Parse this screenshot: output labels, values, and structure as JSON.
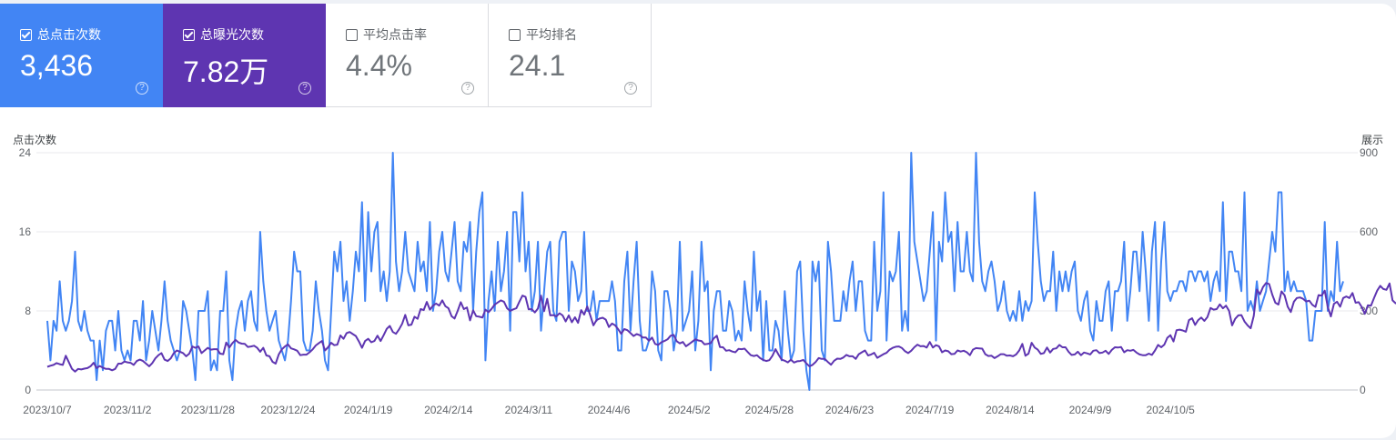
{
  "metrics": [
    {
      "label": "总点击次数",
      "value": "3,436",
      "checked": true
    },
    {
      "label": "总曝光次数",
      "value": "7.82万",
      "checked": true
    },
    {
      "label": "平均点击率",
      "value": "4.4%",
      "checked": false
    },
    {
      "label": "平均排名",
      "value": "24.1",
      "checked": false
    }
  ],
  "help_glyph": "?",
  "colors": {
    "clicks": "#4285f4",
    "impressions": "#5e35b1"
  },
  "chart_data": {
    "type": "line",
    "ylabel_left": "点击次数",
    "ylabel_right": "展示",
    "y_left_ticks": [
      "0",
      "8",
      "16",
      "24"
    ],
    "y_right_ticks": [
      "0",
      "300",
      "600",
      "900"
    ],
    "ylim_left": [
      0,
      24
    ],
    "ylim_right": [
      0,
      900
    ],
    "x_ticks": [
      "2023/10/7",
      "2023/11/2",
      "2023/11/28",
      "2023/12/24",
      "2024/1/19",
      "2024/2/14",
      "2024/3/11",
      "2024/4/6",
      "2024/5/2",
      "2024/5/28",
      "2024/6/23",
      "2024/7/19",
      "2024/8/14",
      "2024/9/9",
      "2024/10/5"
    ],
    "start_date": "2023/10/7",
    "series": [
      {
        "name": "总点击次数",
        "axis": "left",
        "values": [
          7,
          3,
          7,
          6,
          11,
          7,
          6,
          7,
          9,
          14,
          7,
          6,
          8,
          6,
          5,
          5,
          1,
          5,
          2,
          6,
          7,
          7,
          4,
          8,
          4,
          3,
          4,
          3,
          7,
          7,
          5,
          9,
          3,
          5,
          8,
          6,
          4,
          7,
          11,
          7,
          5,
          4,
          3,
          4,
          9,
          8,
          6,
          4,
          1,
          8,
          8,
          8,
          10,
          2,
          3,
          2,
          8,
          8,
          12,
          3,
          1,
          6,
          8,
          9,
          6,
          9,
          10,
          7,
          6,
          16,
          11,
          8,
          6,
          7,
          8,
          5,
          4,
          3,
          5,
          9,
          14,
          12,
          12,
          5,
          4,
          4,
          6,
          11,
          8,
          6,
          3,
          2,
          8,
          14,
          12,
          15,
          9,
          11,
          7,
          10,
          14,
          12,
          19,
          9,
          18,
          12,
          16,
          17,
          10,
          12,
          9,
          12,
          24,
          13,
          10,
          12,
          16,
          12,
          11,
          10,
          15,
          12,
          13,
          10,
          17,
          8,
          10,
          14,
          16,
          12,
          11,
          14,
          17,
          11,
          10,
          15,
          14,
          17,
          8,
          14,
          18,
          20,
          3,
          9,
          12,
          8,
          15,
          10,
          12,
          16,
          6,
          18,
          18,
          13,
          20,
          12,
          15,
          8,
          10,
          15,
          6,
          10,
          14,
          15,
          8,
          7,
          15,
          16,
          16,
          8,
          13,
          12,
          9,
          10,
          16,
          8,
          8,
          10,
          7,
          9,
          9,
          9,
          9,
          11,
          9,
          4,
          4,
          11,
          14,
          6,
          11,
          15,
          7,
          4,
          4,
          5,
          12,
          10,
          4,
          3,
          10,
          10,
          8,
          4,
          6,
          15,
          6,
          7,
          8,
          12,
          4,
          7,
          15,
          10,
          11,
          2,
          8,
          10,
          10,
          6,
          6,
          9,
          8,
          5,
          6,
          5,
          11,
          8,
          6,
          14,
          8,
          10,
          3,
          9,
          4,
          4,
          7,
          6,
          3,
          10,
          6,
          3,
          4,
          12,
          13,
          6,
          2,
          0,
          13,
          11,
          13,
          4,
          3,
          15,
          12,
          7,
          7,
          7,
          10,
          8,
          11,
          13,
          8,
          11,
          11,
          6,
          5,
          5,
          15,
          8,
          10,
          20,
          5,
          12,
          11,
          12,
          16,
          6,
          8,
          6,
          24,
          15,
          13,
          11,
          9,
          10,
          14,
          18,
          5,
          15,
          13,
          20,
          15,
          16,
          10,
          17,
          12,
          12,
          16,
          12,
          11,
          24,
          15,
          11,
          10,
          12,
          13,
          11,
          8,
          9,
          11,
          8,
          7,
          8,
          7,
          10,
          7,
          9,
          8,
          9,
          20,
          15,
          11,
          9,
          10,
          10,
          14,
          8,
          12,
          10,
          12,
          10,
          12,
          13,
          8,
          7,
          9,
          10,
          6,
          5,
          9,
          7,
          7,
          10,
          11,
          6,
          10,
          10,
          11,
          15,
          7,
          10,
          14,
          14,
          10,
          16,
          12,
          7,
          14,
          17,
          6,
          13,
          17,
          10,
          9,
          10,
          10,
          11,
          11,
          10,
          12,
          12,
          11,
          12,
          12,
          11,
          12,
          9,
          11,
          12,
          10,
          19,
          9,
          14,
          14,
          12,
          12,
          10,
          20,
          8,
          9,
          8,
          11,
          8,
          9,
          10,
          13,
          16,
          14,
          20,
          20,
          10,
          12,
          10,
          11,
          10,
          10,
          10,
          9,
          5,
          5,
          8,
          8,
          8,
          17,
          8,
          10,
          9,
          15,
          10,
          11
        ]
      },
      {
        "name": "总曝光次数",
        "axis": "right",
        "values": [
          88,
          92,
          95,
          102,
          98,
          95,
          130,
          105,
          80,
          70,
          80,
          78,
          81,
          83,
          90,
          103,
          83,
          91,
          85,
          80,
          80,
          75,
          80,
          100,
          100,
          108,
          105,
          103,
          95,
          110,
          115,
          110,
          100,
          90,
          102,
          120,
          132,
          140,
          115,
          110,
          120,
          140,
          150,
          145,
          140,
          128,
          138,
          165,
          160,
          165,
          140,
          150,
          160,
          153,
          155,
          155,
          138,
          136,
          180,
          161,
          178,
          190,
          180,
          176,
          175,
          163,
          165,
          168,
          160,
          145,
          160,
          131,
          128,
          107,
          100,
          135,
          154,
          165,
          173,
          158,
          154,
          149,
          132,
          134,
          134,
          143,
          154,
          169,
          178,
          186,
          150,
          162,
          179,
          170,
          172,
          207,
          194,
          216,
          220,
          212,
          205,
          184,
          160,
          186,
          194,
          181,
          186,
          206,
          186,
          208,
          232,
          243,
          220,
          213,
          230,
          251,
          285,
          245,
          248,
          278,
          270,
          307,
          303,
          334,
          305,
          320,
          328,
          320,
          340,
          318,
          310,
          280,
          271,
          300,
          333,
          307,
          313,
          264,
          302,
          280,
          278,
          275,
          305,
          295,
          308,
          324,
          332,
          340,
          335,
          310,
          300,
          306,
          310,
          335,
          358,
          353,
          306,
          307,
          294,
          309,
          358,
          299,
          346,
          283,
          284,
          279,
          291,
          283,
          260,
          283,
          257,
          276,
          255,
          303,
          286,
          317,
          282,
          245,
          265,
          271,
          274,
          267,
          239,
          252,
          246,
          231,
          213,
          231,
          227,
          216,
          205,
          212,
          208,
          199,
          199,
          187,
          199,
          175,
          171,
          181,
          186,
          192,
          206,
          209,
          185,
          177,
          182,
          166,
          174,
          183,
          192,
          188,
          186,
          173,
          175,
          178,
          196,
          206,
          163,
          162,
          149,
          151,
          146,
          143,
          156,
          155,
          157,
          144,
          132,
          129,
          132,
          121,
          114,
          110,
          113,
          130,
          155,
          134,
          115,
          111,
          105,
          115,
          104,
          109,
          110,
          114,
          101,
          90,
          95,
          106,
          121,
          118,
          118,
          106,
          96,
          111,
          119,
          118,
          123,
          133,
          128,
          128,
          118,
          136,
          143,
          150,
          131,
          135,
          141,
          122,
          129,
          136,
          141,
          153,
          160,
          164,
          165,
          159,
          147,
          140,
          149,
          162,
          172,
          166,
          167,
          161,
          182,
          161,
          170,
          166,
          143,
          150,
          147,
          136,
          137,
          150,
          146,
          149,
          143,
          132,
          153,
          159,
          158,
          157,
          136,
          129,
          130,
          121,
          128,
          136,
          136,
          130,
          131,
          128,
          135,
          150,
          175,
          130,
          138,
          179,
          161,
          153,
          137,
          140,
          161,
          142,
          156,
          158,
          171,
          162,
          162,
          145,
          133,
          135,
          145,
          132,
          142,
          139,
          135,
          149,
          151,
          140,
          142,
          149,
          137,
          152,
          162,
          161,
          163,
          143,
          151,
          149,
          152,
          142,
          135,
          132,
          132,
          138,
          133,
          150,
          171,
          162,
          172,
          198,
          208,
          184,
          227,
          229,
          226,
          221,
          265,
          272,
          247,
          265,
          275,
          262,
          277,
          311,
          305,
          307,
          325,
          310,
          320,
          300,
          245,
          270,
          283,
          284,
          260,
          245,
          234,
          281,
          381,
          363,
          390,
          406,
          402,
          362,
          331,
          324,
          374,
          359,
          316,
          296,
          335,
          349,
          351,
          346,
          336,
          339,
          323,
          315,
          360,
          358,
          377,
          315,
          279,
          327,
          335,
          316,
          349,
          355,
          349,
          368,
          331,
          333,
          315,
          289,
          321,
          320,
          349,
          377,
          395,
          383,
          380,
          404,
          340,
          329,
          333,
          331,
          390,
          323,
          367,
          385,
          386,
          366,
          405,
          400,
          386,
          380
        ]
      }
    ]
  }
}
